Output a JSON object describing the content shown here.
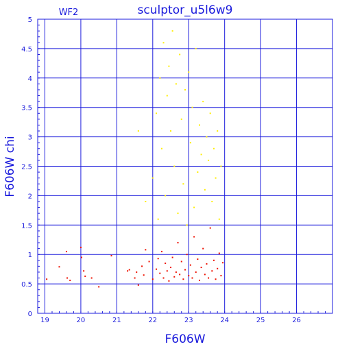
{
  "chart_data": {
    "type": "scatter",
    "title": "sculptor_u5l6w9",
    "subtitle": "WF2",
    "xlabel": "F606W",
    "ylabel": "F606W chi",
    "xlim": [
      18.8,
      27.0
    ],
    "ylim": [
      0,
      5
    ],
    "x_ticks": [
      "19",
      "20",
      "21",
      "22",
      "23",
      "24",
      "25",
      "26"
    ],
    "y_ticks": [
      "0",
      "0.5",
      "1",
      "1.5",
      "2",
      "2.5",
      "3",
      "3.5",
      "4",
      "4.5",
      "5"
    ],
    "grid": true,
    "colors": {
      "axis": "#1a1adc",
      "grid": "#1a1adc",
      "good": "#ee1100",
      "rejected": "#ffee00",
      "background": "#ffffff"
    },
    "series": [
      {
        "color": "#ee1100",
        "points": [
          [
            19.05,
            0.58
          ],
          [
            19.4,
            0.79
          ],
          [
            19.6,
            1.05
          ],
          [
            19.62,
            0.6
          ],
          [
            19.7,
            0.56
          ],
          [
            20.0,
            1.12
          ],
          [
            20.02,
            0.95
          ],
          [
            20.08,
            0.72
          ],
          [
            20.12,
            0.63
          ],
          [
            20.3,
            0.6
          ],
          [
            20.5,
            0.45
          ],
          [
            20.85,
            0.98
          ],
          [
            21.3,
            0.72
          ],
          [
            21.35,
            0.74
          ],
          [
            21.5,
            0.6
          ],
          [
            21.55,
            0.7
          ],
          [
            21.6,
            0.48
          ],
          [
            21.7,
            0.8
          ],
          [
            21.75,
            0.65
          ],
          [
            21.8,
            1.08
          ],
          [
            21.9,
            0.88
          ],
          [
            22.0,
            0.58
          ],
          [
            22.1,
            0.75
          ],
          [
            22.15,
            0.93
          ],
          [
            22.2,
            0.68
          ],
          [
            22.25,
            1.05
          ],
          [
            22.3,
            0.6
          ],
          [
            22.35,
            0.85
          ],
          [
            22.4,
            0.72
          ],
          [
            22.45,
            0.55
          ],
          [
            22.5,
            0.78
          ],
          [
            22.55,
            0.95
          ],
          [
            22.6,
            0.62
          ],
          [
            22.65,
            0.7
          ],
          [
            22.7,
            1.2
          ],
          [
            22.75,
            0.66
          ],
          [
            22.8,
            0.88
          ],
          [
            22.85,
            0.58
          ],
          [
            22.9,
            0.74
          ],
          [
            22.95,
            1.0
          ],
          [
            23.0,
            0.64
          ],
          [
            23.05,
            0.82
          ],
          [
            23.1,
            0.6
          ],
          [
            23.15,
            1.3
          ],
          [
            23.2,
            0.7
          ],
          [
            23.25,
            0.92
          ],
          [
            23.3,
            0.56
          ],
          [
            23.35,
            0.78
          ],
          [
            23.4,
            1.1
          ],
          [
            23.45,
            0.66
          ],
          [
            23.5,
            0.84
          ],
          [
            23.55,
            0.6
          ],
          [
            23.6,
            1.45
          ],
          [
            23.65,
            0.72
          ],
          [
            23.7,
            0.9
          ],
          [
            23.75,
            0.58
          ],
          [
            23.8,
            0.76
          ],
          [
            23.85,
            1.02
          ],
          [
            23.9,
            0.64
          ],
          [
            23.95,
            0.86
          ]
        ]
      },
      {
        "color": "#ffee00",
        "points": [
          [
            21.6,
            3.1
          ],
          [
            21.8,
            1.9
          ],
          [
            22.0,
            2.3
          ],
          [
            22.1,
            3.4
          ],
          [
            22.15,
            1.6
          ],
          [
            22.2,
            4.0
          ],
          [
            22.25,
            2.8
          ],
          [
            22.3,
            4.6
          ],
          [
            22.35,
            2.0
          ],
          [
            22.4,
            3.7
          ],
          [
            22.45,
            4.2
          ],
          [
            22.5,
            3.1
          ],
          [
            22.55,
            4.8
          ],
          [
            22.6,
            2.5
          ],
          [
            22.65,
            3.9
          ],
          [
            22.7,
            1.7
          ],
          [
            22.75,
            4.4
          ],
          [
            22.8,
            3.3
          ],
          [
            22.85,
            2.2
          ],
          [
            22.9,
            3.8
          ],
          [
            22.95,
            1.5
          ],
          [
            23.0,
            4.1
          ],
          [
            23.05,
            2.9
          ],
          [
            23.1,
            3.5
          ],
          [
            23.15,
            1.8
          ],
          [
            23.2,
            4.5
          ],
          [
            23.25,
            2.4
          ],
          [
            23.3,
            3.2
          ],
          [
            23.35,
            2.7
          ],
          [
            23.4,
            3.6
          ],
          [
            23.45,
            2.1
          ],
          [
            23.5,
            3.0
          ],
          [
            23.55,
            2.6
          ],
          [
            23.6,
            3.4
          ],
          [
            23.65,
            1.9
          ],
          [
            23.7,
            2.8
          ],
          [
            23.75,
            2.3
          ],
          [
            23.8,
            3.1
          ],
          [
            23.85,
            1.6
          ],
          [
            23.9,
            2.5
          ]
        ]
      }
    ]
  }
}
